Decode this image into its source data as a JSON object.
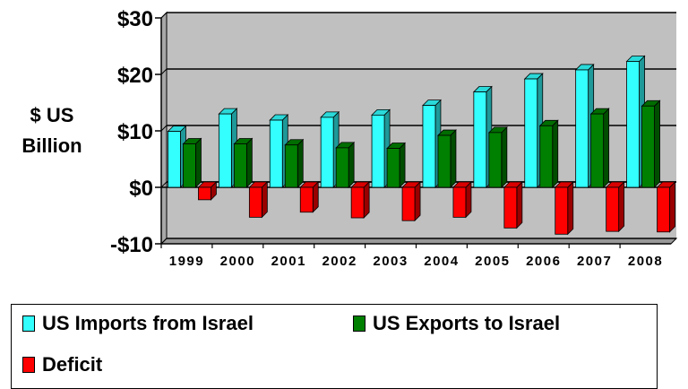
{
  "chart_data": {
    "type": "bar",
    "ylabel_lines": [
      "$ US",
      "Billion"
    ],
    "xlabel": "",
    "categories": [
      "1999",
      "2000",
      "2001",
      "2002",
      "2003",
      "2004",
      "2005",
      "2006",
      "2007",
      "2008"
    ],
    "ylim": [
      -10,
      30
    ],
    "yticks": [
      -10,
      0,
      10,
      20,
      30
    ],
    "ytick_labels": [
      "-$10",
      "$0",
      "$10",
      "$20",
      "$30"
    ],
    "grid": true,
    "legend_position": "bottom",
    "series": [
      {
        "name": "US Imports from Israel",
        "color": "#33ffff",
        "values": [
          9.9,
          13.0,
          11.9,
          12.4,
          12.8,
          14.5,
          16.9,
          19.2,
          20.8,
          22.3
        ]
      },
      {
        "name": "US Exports to Israel",
        "color": "#008000",
        "values": [
          7.7,
          7.7,
          7.5,
          7.0,
          6.9,
          9.2,
          9.7,
          10.9,
          13.0,
          14.4
        ]
      },
      {
        "name": "Deficit",
        "color": "#ff0000",
        "values": [
          -2.2,
          -5.3,
          -4.4,
          -5.4,
          -5.9,
          -5.3,
          -7.2,
          -8.3,
          -7.8,
          -7.9
        ]
      }
    ]
  }
}
